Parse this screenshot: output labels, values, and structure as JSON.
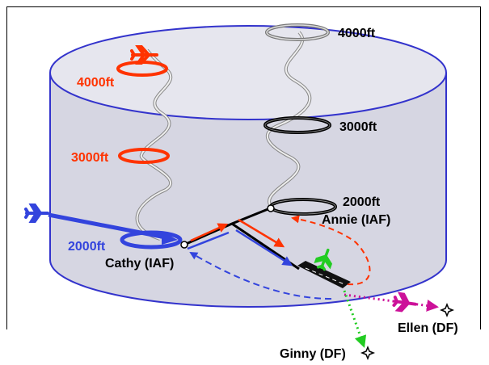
{
  "labels": {
    "red_4000": "4000ft",
    "red_3000": "3000ft",
    "blue_2000": "2000ft",
    "black_4000": "4000ft",
    "black_3000": "3000ft",
    "black_2000": "2000ft",
    "annie": "Annie (IAF)",
    "cathy": "Cathy (IAF)",
    "ellen": "Ellen (DF)",
    "ginny": "Ginny (DF)"
  },
  "colors": {
    "cylinder_fill": "#d6d6e2",
    "cylinder_edge": "#3333cc",
    "red": "#ff3300",
    "blue": "#3344dd",
    "black": "#000000",
    "green": "#22cc22",
    "magenta": "#cc1199"
  },
  "icons": [
    "airplane-icon",
    "waypoint-star-icon",
    "runway-icon"
  ]
}
